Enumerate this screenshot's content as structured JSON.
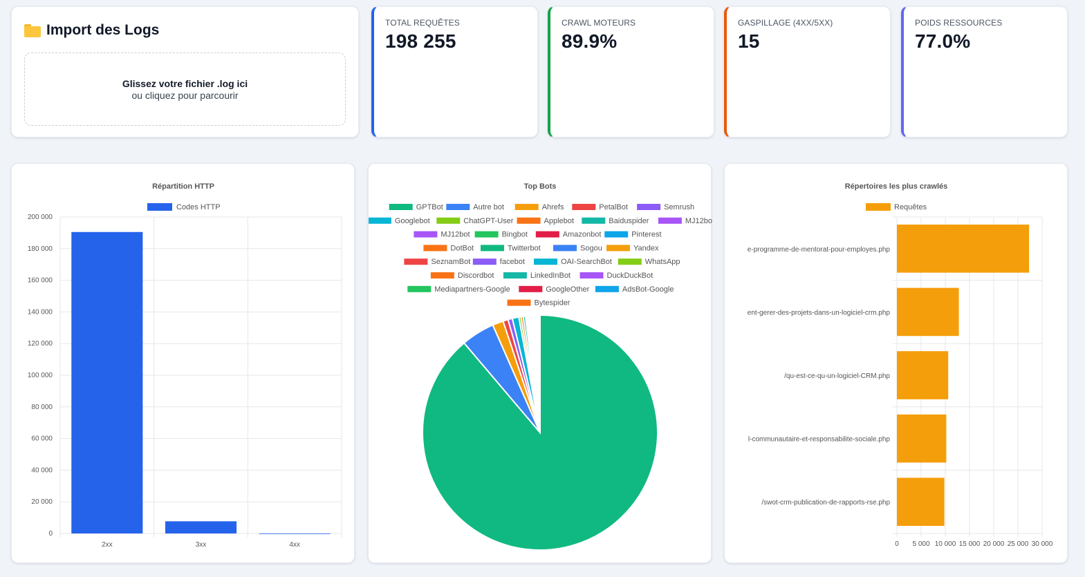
{
  "import": {
    "title": "Import des Logs",
    "icon": "folder-icon",
    "drop_primary": "Glissez votre fichier .log ici",
    "drop_secondary": "ou cliquez pour parcourir"
  },
  "kpis": [
    {
      "label": "TOTAL REQUÊTES",
      "value": "198 255",
      "color": "#2563eb"
    },
    {
      "label": "CRAWL MOTEURS",
      "value": "89.9%",
      "color": "#16a34a"
    },
    {
      "label": "GASPILLAGE (4XX/5XX)",
      "value": "15",
      "color": "#ea580c"
    },
    {
      "label": "POIDS RESSOURCES",
      "value": "77.0%",
      "color": "#6366f1"
    }
  ],
  "chart_data": [
    {
      "type": "bar",
      "title": "Répartition HTTP",
      "legend": "Codes HTTP",
      "color": "#2563eb",
      "categories": [
        "2xx",
        "3xx",
        "4xx"
      ],
      "values": [
        190500,
        7700,
        15
      ],
      "ylim": [
        0,
        200000
      ],
      "yticks": [
        0,
        20000,
        40000,
        60000,
        80000,
        100000,
        120000,
        140000,
        160000,
        180000,
        200000
      ],
      "ytick_labels": [
        "0",
        "20 000",
        "40 000",
        "60 000",
        "80 000",
        "100 000",
        "120 000",
        "140 000",
        "160 000",
        "180 000",
        "200 000"
      ]
    },
    {
      "type": "pie",
      "title": "Top Bots",
      "labels": [
        "GPTBot",
        "Autre bot",
        "Ahrefs",
        "PetalBot",
        "Semrush",
        "Googlebot",
        "ChatGPT-User",
        "Applebot",
        "Baiduspider",
        "MJ12bot",
        "Bingbot",
        "Amazonbot",
        "Pinterest",
        "DotBot",
        "Twitterbot",
        "Sogou",
        "Yandex",
        "SeznamBot",
        "facebot",
        "OAI-SearchBot",
        "WhatsApp",
        "Discordbot",
        "LinkedInBot",
        "DuckDuckBot",
        "Mediapartners-Google",
        "GoogleOther",
        "AdsBot-Google",
        "Bytespider"
      ],
      "colors": [
        "#10b981",
        "#3b82f6",
        "#f59e0b",
        "#ef4444",
        "#8b5cf6",
        "#06b6d4",
        "#84cc16",
        "#f97316",
        "#14b8a6",
        "#a855f7",
        "#22c55e",
        "#e11d48",
        "#0ea5e9",
        "#f97316",
        "#10b981",
        "#3b82f6",
        "#f59e0b",
        "#ef4444",
        "#8b5cf6",
        "#06b6d4",
        "#84cc16",
        "#f97316",
        "#14b8a6",
        "#a855f7",
        "#22c55e",
        "#e11d48",
        "#0ea5e9",
        "#f97316"
      ],
      "values": [
        88.9,
        4.6,
        1.5,
        0.7,
        0.6,
        0.9,
        0.3,
        0.3,
        0.3,
        0.2,
        0.2,
        0.2,
        0.2,
        0.15,
        0.15,
        0.1,
        0.1,
        0.1,
        0.1,
        0.1,
        0.05,
        0.05,
        0.05,
        0.05,
        0.05,
        0.05,
        0.05,
        0.05
      ],
      "legend_rows": [
        [
          0,
          1,
          2,
          3,
          4
        ],
        [
          5,
          6,
          7,
          8,
          9
        ],
        [
          9,
          10,
          11,
          12
        ],
        [
          13,
          14,
          15,
          16
        ],
        [
          17,
          18,
          19,
          20
        ],
        [
          21,
          22,
          23
        ],
        [
          24,
          25,
          26
        ],
        [
          27
        ]
      ]
    },
    {
      "type": "bar",
      "orientation": "horizontal",
      "title": "Répertoires les plus crawlés",
      "legend": "Requêtes",
      "color": "#f59e0b",
      "categories": [
        "e-programme-de-mentorat-pour-employes.php",
        "ent-gerer-des-projets-dans-un-logiciel-crm.php",
        "/qu-est-ce-qu-un-logiciel-CRM.php",
        "l-communautaire-et-responsabilite-sociale.php",
        "/swot-crm-publication-de-rapports-rse.php"
      ],
      "values": [
        27300,
        12800,
        10600,
        10200,
        9800
      ],
      "xlim": [
        0,
        30000
      ],
      "xticks": [
        0,
        5000,
        10000,
        15000,
        20000,
        25000,
        30000
      ],
      "xtick_labels": [
        "0",
        "5 000",
        "10 000",
        "15 000",
        "20 000",
        "25 000",
        "30 000"
      ]
    }
  ]
}
